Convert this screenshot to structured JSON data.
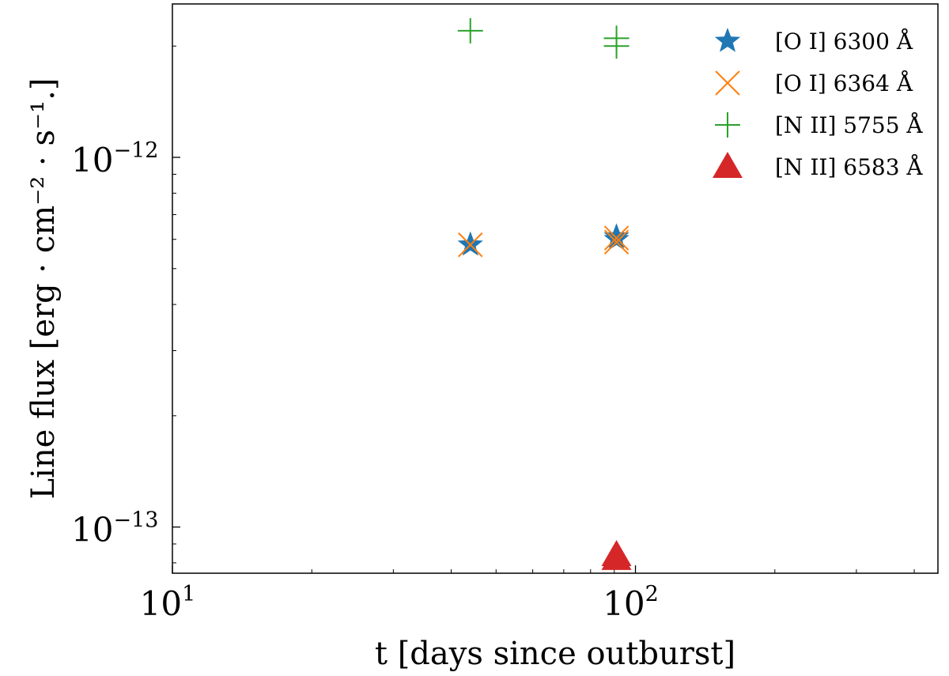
{
  "chart_data": {
    "type": "scatter",
    "xscale": "log",
    "yscale": "log",
    "xlim": [
      10,
      450
    ],
    "ylim": [
      7.5e-14,
      2.6e-12
    ],
    "xlabel": "t [days since outburst]",
    "ylabel": "Line flux [erg · cm⁻² · s⁻¹.]",
    "x_ticks": [
      {
        "value": 10,
        "base": "10",
        "exp": "1"
      },
      {
        "value": 100,
        "base": "10",
        "exp": "2"
      }
    ],
    "y_ticks": [
      {
        "value": 1e-12,
        "base": "10",
        "exp": "−12"
      },
      {
        "value": 1e-13,
        "base": "10",
        "exp": "−13"
      }
    ],
    "legend_position": "top-right",
    "series": [
      {
        "name": "[O I] 6300 Å",
        "marker": "star",
        "color": "#1f77b4",
        "points": [
          {
            "x": 44,
            "y": 5.8e-13
          },
          {
            "x": 91,
            "y": 6e-13
          },
          {
            "x": 91,
            "y": 6.1e-13
          }
        ]
      },
      {
        "name": "[O I] 6364 Å",
        "marker": "x",
        "color": "#ff7f0e",
        "points": [
          {
            "x": 44,
            "y": 5.8e-13
          },
          {
            "x": 91,
            "y": 5.9e-13
          },
          {
            "x": 91,
            "y": 6.05e-13
          }
        ]
      },
      {
        "name": "[N II] 5755 Å",
        "marker": "plus",
        "color": "#2ca02c",
        "points": [
          {
            "x": 44,
            "y": 2.2e-12
          },
          {
            "x": 91,
            "y": 2e-12
          },
          {
            "x": 91,
            "y": 2.1e-12
          }
        ]
      },
      {
        "name": "[N II] 6583 Å",
        "marker": "triangle",
        "color": "#d62728",
        "points": [
          {
            "x": 91,
            "y": 8.2e-14
          },
          {
            "x": 91,
            "y": 8.4e-14
          }
        ]
      }
    ]
  }
}
